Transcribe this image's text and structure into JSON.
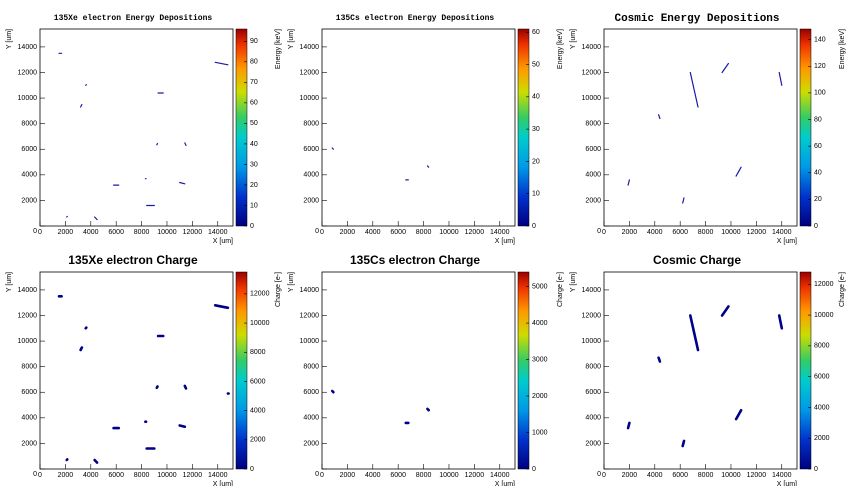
{
  "chart_data": [
    {
      "type": "line",
      "title": "135Xe electron Energy Depositions",
      "x_label": "X [um]",
      "y_label": "Y [um]",
      "z_label": "Energy [keV]",
      "xlim": [
        0,
        15200
      ],
      "ylim": [
        0,
        15400
      ],
      "zlim": [
        0,
        96
      ],
      "xticks": [
        0,
        2000,
        4000,
        6000,
        8000,
        10000,
        12000,
        14000
      ],
      "yticks": [
        0,
        2000,
        4000,
        6000,
        8000,
        10000,
        12000,
        14000
      ],
      "zticks": [
        0,
        10,
        20,
        30,
        40,
        50,
        60,
        70,
        80,
        90
      ],
      "series": [
        {
          "color": "#1a1aa8",
          "x": [
            1500,
            1700
          ],
          "y": [
            13500,
            13500
          ]
        },
        {
          "color": "#1a1aa8",
          "x": [
            3600,
            3650
          ],
          "y": [
            11000,
            11050
          ]
        },
        {
          "color": "#1a1aa8",
          "x": [
            3200,
            3300
          ],
          "y": [
            9300,
            9500
          ]
        },
        {
          "color": "#1a1aa8",
          "x": [
            9300,
            9700
          ],
          "y": [
            10400,
            10400
          ]
        },
        {
          "color": "#1a1aa8",
          "x": [
            13800,
            14800
          ],
          "y": [
            12800,
            12600
          ]
        },
        {
          "color": "#1a1aa8",
          "x": [
            9200,
            9250
          ],
          "y": [
            6350,
            6450
          ]
        },
        {
          "color": "#1a1aa8",
          "x": [
            11400,
            11500
          ],
          "y": [
            6500,
            6300
          ]
        },
        {
          "color": "#1a1aa8",
          "x": [
            5800,
            6200
          ],
          "y": [
            3200,
            3200
          ]
        },
        {
          "color": "#1a1aa8",
          "x": [
            8300,
            8350
          ],
          "y": [
            3700,
            3700
          ]
        },
        {
          "color": "#1a1aa8",
          "x": [
            11000,
            11400
          ],
          "y": [
            3400,
            3300
          ]
        },
        {
          "color": "#1a1aa8",
          "x": [
            8400,
            9000
          ],
          "y": [
            1600,
            1600
          ]
        },
        {
          "color": "#1a1aa8",
          "x": [
            2100,
            2150
          ],
          "y": [
            700,
            750
          ]
        },
        {
          "color": "#1a1aa8",
          "x": [
            4300,
            4500
          ],
          "y": [
            700,
            500
          ]
        }
      ]
    },
    {
      "type": "line",
      "title": "135Cs electron Energy Depositions",
      "x_label": "X [um]",
      "y_label": "Y [um]",
      "z_label": "Energy [keV]",
      "xlim": [
        0,
        15200
      ],
      "ylim": [
        0,
        15400
      ],
      "zlim": [
        0,
        61
      ],
      "xticks": [
        0,
        2000,
        4000,
        6000,
        8000,
        10000,
        12000,
        14000
      ],
      "yticks": [
        0,
        2000,
        4000,
        6000,
        8000,
        10000,
        12000,
        14000
      ],
      "zticks": [
        0,
        10,
        20,
        30,
        40,
        50,
        60
      ],
      "series": [
        {
          "color": "#1a1aa8",
          "x": [
            800,
            900
          ],
          "y": [
            6100,
            6000
          ]
        },
        {
          "color": "#1a1aa8",
          "x": [
            6600,
            6800
          ],
          "y": [
            3600,
            3600
          ]
        },
        {
          "color": "#1a1aa8",
          "x": [
            8300,
            8400
          ],
          "y": [
            4700,
            4600
          ]
        }
      ]
    },
    {
      "type": "line",
      "title": "Cosmic Energy Depositions",
      "x_label": "X [um]",
      "y_label": "Y [um]",
      "z_label": "Energy [keV]",
      "xlim": [
        0,
        15200
      ],
      "ylim": [
        0,
        15400
      ],
      "zlim": [
        0,
        148
      ],
      "xticks": [
        0,
        2000,
        4000,
        6000,
        8000,
        10000,
        12000,
        14000
      ],
      "yticks": [
        0,
        2000,
        4000,
        6000,
        8000,
        10000,
        12000,
        14000
      ],
      "zticks": [
        0,
        20,
        40,
        60,
        80,
        100,
        120,
        140
      ],
      "series": [
        {
          "color": "#1a1aa8",
          "x": [
            1900,
            2000
          ],
          "y": [
            3200,
            3600
          ]
        },
        {
          "color": "#1a1aa8",
          "x": [
            4300,
            4400
          ],
          "y": [
            8700,
            8400
          ]
        },
        {
          "color": "#1a1aa8",
          "x": [
            6200,
            6300
          ],
          "y": [
            1800,
            2200
          ]
        },
        {
          "color": "#1a1aa8",
          "x": [
            6800,
            7400
          ],
          "y": [
            12000,
            9300
          ]
        },
        {
          "color": "#1a1aa8",
          "x": [
            9300,
            9800
          ],
          "y": [
            12000,
            12700
          ]
        },
        {
          "color": "#1a1aa8",
          "x": [
            10400,
            10800
          ],
          "y": [
            3900,
            4600
          ]
        },
        {
          "color": "#1a1aa8",
          "x": [
            13800,
            14000
          ],
          "y": [
            12000,
            11000
          ]
        }
      ]
    },
    {
      "type": "line",
      "title": "135Xe electron Charge",
      "x_label": "X [um]",
      "y_label": "Y [um]",
      "z_label": "Charge [e-]",
      "xlim": [
        0,
        15200
      ],
      "ylim": [
        0,
        15400
      ],
      "zlim": [
        0,
        13500
      ],
      "xticks": [
        0,
        2000,
        4000,
        6000,
        8000,
        10000,
        12000,
        14000
      ],
      "yticks": [
        0,
        2000,
        4000,
        6000,
        8000,
        10000,
        12000,
        14000
      ],
      "zticks": [
        0,
        2000,
        4000,
        6000,
        8000,
        10000,
        12000
      ],
      "series": [
        {
          "color": "#00008b",
          "x": [
            1500,
            1700
          ],
          "y": [
            13500,
            13500
          ]
        },
        {
          "color": "#00008b",
          "x": [
            3600,
            3650
          ],
          "y": [
            11000,
            11050
          ]
        },
        {
          "color": "#00008b",
          "x": [
            3200,
            3300
          ],
          "y": [
            9300,
            9500
          ]
        },
        {
          "color": "#00008b",
          "x": [
            9300,
            9700
          ],
          "y": [
            10400,
            10400
          ]
        },
        {
          "color": "#00008b",
          "x": [
            13800,
            14800
          ],
          "y": [
            12800,
            12600
          ]
        },
        {
          "color": "#00008b",
          "x": [
            9200,
            9250
          ],
          "y": [
            6350,
            6450
          ]
        },
        {
          "color": "#00008b",
          "x": [
            11400,
            11500
          ],
          "y": [
            6500,
            6300
          ]
        },
        {
          "color": "#00008b",
          "x": [
            5800,
            6200
          ],
          "y": [
            3200,
            3200
          ]
        },
        {
          "color": "#00008b",
          "x": [
            8300,
            8350
          ],
          "y": [
            3700,
            3700
          ]
        },
        {
          "color": "#00008b",
          "x": [
            11000,
            11400
          ],
          "y": [
            3400,
            3300
          ]
        },
        {
          "color": "#00008b",
          "x": [
            8400,
            9000
          ],
          "y": [
            1600,
            1600
          ]
        },
        {
          "color": "#00008b",
          "x": [
            2100,
            2150
          ],
          "y": [
            700,
            750
          ]
        },
        {
          "color": "#00008b",
          "x": [
            4300,
            4500
          ],
          "y": [
            700,
            500
          ]
        },
        {
          "color": "#00008b",
          "x": [
            14800,
            14850
          ],
          "y": [
            5900,
            5900
          ]
        }
      ]
    },
    {
      "type": "line",
      "title": "135Cs electron Charge",
      "x_label": "X [um]",
      "y_label": "Y [um]",
      "z_label": "Charge [e-]",
      "xlim": [
        0,
        15200
      ],
      "ylim": [
        0,
        15400
      ],
      "zlim": [
        0,
        5400
      ],
      "xticks": [
        0,
        2000,
        4000,
        6000,
        8000,
        10000,
        12000,
        14000
      ],
      "yticks": [
        0,
        2000,
        4000,
        6000,
        8000,
        10000,
        12000,
        14000
      ],
      "zticks": [
        0,
        1000,
        2000,
        3000,
        4000,
        5000
      ],
      "series": [
        {
          "color": "#00008b",
          "x": [
            800,
            900
          ],
          "y": [
            6100,
            6000
          ]
        },
        {
          "color": "#00008b",
          "x": [
            6600,
            6800
          ],
          "y": [
            3600,
            3600
          ]
        },
        {
          "color": "#00008b",
          "x": [
            8300,
            8400
          ],
          "y": [
            4700,
            4600
          ]
        }
      ]
    },
    {
      "type": "line",
      "title": "Cosmic Charge",
      "x_label": "X [um]",
      "y_label": "Y [um]",
      "z_label": "Charge [e-]",
      "xlim": [
        0,
        15200
      ],
      "ylim": [
        0,
        15400
      ],
      "zlim": [
        0,
        12800
      ],
      "xticks": [
        0,
        2000,
        4000,
        6000,
        8000,
        10000,
        12000,
        14000
      ],
      "yticks": [
        0,
        2000,
        4000,
        6000,
        8000,
        10000,
        12000,
        14000
      ],
      "zticks": [
        0,
        2000,
        4000,
        6000,
        8000,
        10000,
        12000
      ],
      "series": [
        {
          "color": "#00008b",
          "x": [
            1900,
            2000
          ],
          "y": [
            3200,
            3600
          ]
        },
        {
          "color": "#00008b",
          "x": [
            4300,
            4400
          ],
          "y": [
            8700,
            8400
          ]
        },
        {
          "color": "#00008b",
          "x": [
            6200,
            6300
          ],
          "y": [
            1800,
            2200
          ]
        },
        {
          "color": "#00008b",
          "x": [
            6800,
            7400
          ],
          "y": [
            12000,
            9300
          ]
        },
        {
          "color": "#00008b",
          "x": [
            9300,
            9800
          ],
          "y": [
            12000,
            12700
          ]
        },
        {
          "color": "#00008b",
          "x": [
            10400,
            10800
          ],
          "y": [
            3900,
            4600
          ]
        },
        {
          "color": "#00008b",
          "x": [
            13800,
            14000
          ],
          "y": [
            12000,
            11000
          ]
        }
      ]
    }
  ]
}
